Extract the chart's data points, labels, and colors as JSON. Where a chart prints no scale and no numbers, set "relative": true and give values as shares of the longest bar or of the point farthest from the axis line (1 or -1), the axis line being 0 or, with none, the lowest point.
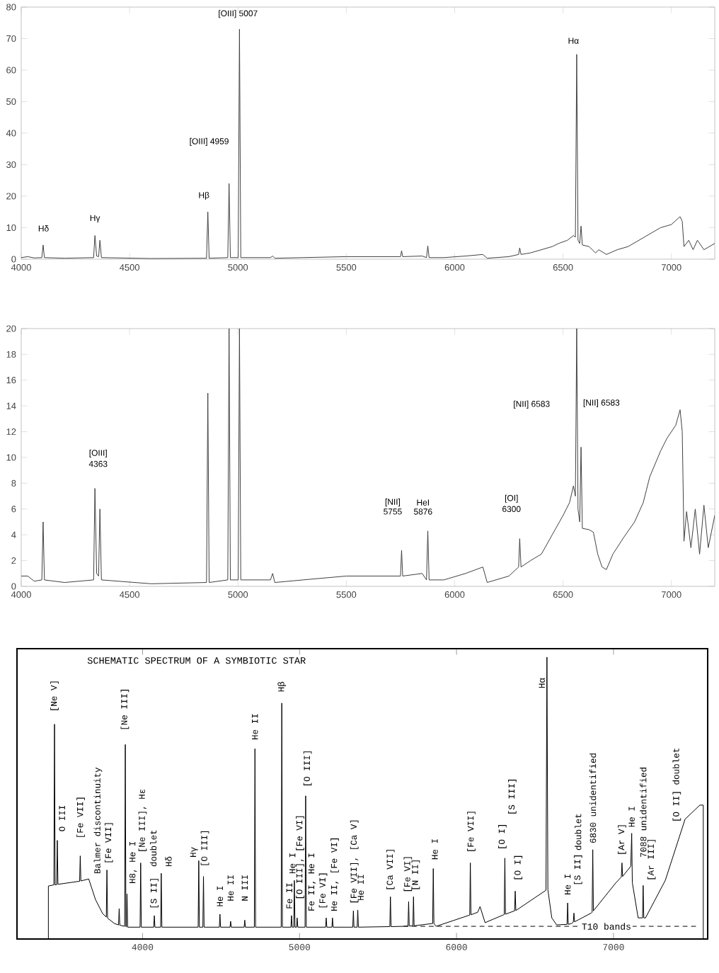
{
  "chart_data": [
    {
      "type": "line",
      "color": "#404040",
      "xlim": [
        4000,
        7200
      ],
      "xticks": [
        4000,
        4500,
        5000,
        5500,
        6000,
        6500,
        7000
      ],
      "ylim": [
        0,
        80
      ],
      "yticks": [
        0,
        10,
        20,
        30,
        40,
        50,
        60,
        70,
        80
      ],
      "x": [
        4000,
        4030,
        4060,
        4095,
        4101,
        4107,
        4200,
        4334,
        4340,
        4348,
        4357,
        4363,
        4370,
        4600,
        4855,
        4861,
        4867,
        4953,
        4959,
        4965,
        5001,
        5007,
        5013,
        5150,
        5160,
        5170,
        5300,
        5500,
        5700,
        5750,
        5755,
        5760,
        5850,
        5870,
        5876,
        5882,
        5950,
        6050,
        6130,
        6150,
        6250,
        6295,
        6300,
        6306,
        6350,
        6400,
        6450,
        6480,
        6520,
        6548,
        6557,
        6563,
        6569,
        6577,
        6583,
        6589,
        6620,
        6650,
        6665,
        6700,
        6750,
        6800,
        6850,
        6900,
        6950,
        7000,
        7040,
        7050,
        7058,
        7080,
        7100,
        7120,
        7150,
        7200
      ],
      "values": [
        0.5,
        0.8,
        0.4,
        0.5,
        4.5,
        0.5,
        0.3,
        0.5,
        7.5,
        1.0,
        0.8,
        6,
        0.5,
        0.2,
        0.3,
        15,
        0.3,
        0.5,
        24,
        0.5,
        0.5,
        73,
        0.5,
        0.5,
        1.0,
        0.3,
        0.5,
        0.8,
        0.8,
        0.8,
        2.7,
        0.8,
        1.0,
        0.5,
        4.2,
        0.5,
        0.5,
        1.0,
        1.5,
        0.3,
        0.8,
        1.5,
        3.6,
        1.5,
        2.0,
        3.0,
        4.0,
        5.0,
        6.0,
        7.5,
        7.0,
        65,
        6.0,
        5.0,
        10.5,
        4.5,
        4.0,
        2.0,
        3.0,
        1.5,
        3.0,
        4.0,
        6.0,
        8.0,
        10.0,
        11.0,
        13.5,
        12.0,
        4.0,
        6.0,
        3.0,
        6.0,
        3.0,
        5.0
      ],
      "annotations": [
        "Hδ",
        "Hγ",
        "Hβ",
        "[OIII] 4959",
        "[OIII] 5007",
        "Hα"
      ]
    },
    {
      "type": "line",
      "color": "#404040",
      "xlim": [
        4000,
        7200
      ],
      "xticks": [
        4000,
        4500,
        5000,
        5500,
        6000,
        6500,
        7000
      ],
      "ylim": [
        0,
        20
      ],
      "yticks": [
        0,
        2,
        4,
        6,
        8,
        10,
        12,
        14,
        16,
        18,
        20
      ],
      "x": [
        4000,
        4030,
        4060,
        4095,
        4101,
        4107,
        4200,
        4334,
        4340,
        4348,
        4357,
        4363,
        4370,
        4600,
        4855,
        4861,
        4867,
        4953,
        4959,
        4965,
        5001,
        5007,
        5013,
        5150,
        5160,
        5170,
        5300,
        5500,
        5700,
        5750,
        5755,
        5760,
        5850,
        5870,
        5876,
        5882,
        5950,
        6050,
        6130,
        6150,
        6250,
        6295,
        6300,
        6306,
        6350,
        6400,
        6450,
        6500,
        6530,
        6548,
        6557,
        6563,
        6569,
        6577,
        6583,
        6589,
        6620,
        6640,
        6660,
        6680,
        6700,
        6730,
        6780,
        6830,
        6870,
        6900,
        6950,
        6980,
        7020,
        7040,
        7050,
        7058,
        7070,
        7090,
        7110,
        7130,
        7150,
        7170,
        7200
      ],
      "values": [
        0.8,
        0.8,
        0.4,
        0.5,
        5.0,
        0.5,
        0.3,
        0.5,
        7.6,
        1.0,
        0.8,
        6.0,
        0.5,
        0.2,
        0.3,
        15,
        0.3,
        0.5,
        20,
        0.5,
        0.5,
        20,
        0.5,
        0.5,
        1.0,
        0.3,
        0.5,
        0.8,
        0.8,
        0.8,
        2.8,
        0.8,
        1.0,
        0.5,
        4.3,
        0.5,
        0.5,
        1.0,
        1.5,
        0.3,
        0.8,
        1.5,
        3.7,
        1.5,
        2.0,
        2.5,
        4.0,
        5.5,
        6.5,
        7.8,
        7.0,
        20,
        6.0,
        5.0,
        10.8,
        4.5,
        4.4,
        4.2,
        2.5,
        1.5,
        1.3,
        2.5,
        3.8,
        5.0,
        6.5,
        8.5,
        10.5,
        11.5,
        12.5,
        13.7,
        12.0,
        3.5,
        5.8,
        3.0,
        6.0,
        2.5,
        6.3,
        3.0,
        5.5
      ],
      "annotations": [
        "[OIII]",
        "4363",
        "[NII]",
        "5755",
        "HeI",
        "5876",
        "[OI]",
        "6300",
        "[NII] 6583",
        "[NII] 6583"
      ]
    },
    {
      "type": "line",
      "relative": true,
      "title": "SCHEMATIC SPECTRUM OF A SYMBIOTIC STAR",
      "xlim": [
        3200,
        7600
      ],
      "xticks": [
        4000,
        5000,
        6000,
        7000
      ],
      "series": [
        {
          "color": "#000000",
          "x": [
            3400,
            3400,
            3435,
            3439,
            3443,
            3453,
            3457,
            3461,
            3599,
            3603,
            3607,
            3657,
            3700,
            3746,
            3769,
            3773,
            3777,
            3821,
            3847,
            3851,
            3855,
            3886,
            3890,
            3894,
            3897,
            3901,
            3905,
            3984,
            3988,
            3992,
            4071,
            4075,
            4079,
            4115,
            4119,
            4123,
            4354,
            4358,
            4362,
            4384,
            4388,
            4392,
            4489,
            4493,
            4497,
            4557,
            4561,
            4565,
            4647,
            4651,
            4655,
            4712,
            4716,
            4720,
            4883,
            4887,
            4891,
            4945,
            4949,
            4953,
            4963,
            4967,
            4971,
            4981,
            4985,
            4989,
            5035,
            5039,
            5043,
            5166,
            5170,
            5174,
            5206,
            5210,
            5214,
            5339,
            5343,
            5347,
            5367,
            5371,
            5375,
            5575,
            5579,
            5583,
            5664,
            5691,
            5695,
            5699,
            5722,
            5726,
            5730,
            5848,
            5852,
            5856,
            5870,
            6084,
            6088,
            6092,
            6135,
            6150,
            6182,
            6300,
            6304,
            6308,
            6312,
            6370,
            6374,
            6378,
            6570,
            6576,
            6582,
            6607,
            6638,
            6704,
            6708,
            6712,
            6733,
            6744,
            6748,
            6752,
            6858,
            6864,
            6868,
            6872,
            7016,
            7050,
            7054,
            7058,
            7110,
            7116,
            7120,
            7157,
            7185,
            7189,
            7193,
            7204,
            7330,
            7456,
            7550,
            7572,
            7572
          ],
          "values": [
            0,
            0.188,
            0.192,
            0.762,
            0.192,
            0.193,
            0.35,
            0.194,
            0.205,
            0.295,
            0.206,
            0.213,
            0.14,
            0.09,
            0.078,
            0.245,
            0.074,
            0.055,
            0.05,
            0.108,
            0.049,
            0.045,
            0.69,
            0.044,
            0.043,
            0.16,
            0.042,
            0.042,
            0.27,
            0.042,
            0.042,
            0.083,
            0.042,
            0.042,
            0.233,
            0.042,
            0.042,
            0.278,
            0.042,
            0.042,
            0.222,
            0.042,
            0.042,
            0.088,
            0.042,
            0.042,
            0.063,
            0.042,
            0.042,
            0.067,
            0.042,
            0.042,
            0.675,
            0.042,
            0.042,
            0.837,
            0.042,
            0.042,
            0.083,
            0.042,
            0.042,
            0.208,
            0.042,
            0.042,
            0.075,
            0.042,
            0.042,
            0.508,
            0.042,
            0.042,
            0.075,
            0.042,
            0.042,
            0.075,
            0.042,
            0.042,
            0.1,
            0.042,
            0.042,
            0.103,
            0.042,
            0.044,
            0.15,
            0.044,
            0.045,
            0.046,
            0.133,
            0.046,
            0.047,
            0.15,
            0.047,
            0.055,
            0.25,
            0.055,
            0.045,
            0.085,
            0.27,
            0.086,
            0.095,
            0.115,
            0.058,
            0.086,
            0.087,
            0.287,
            0.088,
            0.1,
            0.17,
            0.101,
            0.173,
            1.0,
            0.175,
            0.075,
            0.05,
            0.052,
            0.128,
            0.052,
            0.055,
            0.06,
            0.092,
            0.061,
            0.092,
            0.095,
            0.317,
            0.1,
            0.2,
            0.22,
            0.27,
            0.222,
            0.258,
            0.375,
            0.2,
            0.075,
            0.075,
            0.19,
            0.075,
            0.075,
            0.208,
            0.425,
            0.475,
            0.475,
            0
          ]
        },
        {
          "name": "T10 bands",
          "color": "#000000",
          "line_style": "dashed",
          "x": [
            5664,
            7535
          ],
          "values": [
            0.045,
            0.045
          ]
        }
      ],
      "annotations": [
        "[Ne V]",
        "O III",
        "[Fe VII]",
        "Balmer discontinuity",
        "[Fe VII]",
        "[Ne III]",
        "H8, He I",
        "[Ne III], Hε",
        "[S II]",
        "doublet",
        "Hδ",
        "Hγ",
        "[O III]",
        "He I",
        "He II",
        "N III",
        "He II",
        "Hβ",
        "Fe II",
        "He I",
        "[O III], [Fe VI]",
        "[O III]",
        "Fe II, He I",
        "[Fe VI]",
        "He II, [Fe VI]",
        "[Fe VII], [Ca V]",
        "He II",
        "[Ca VII]",
        "[Fe VI]",
        "[N II]",
        "He I",
        "[Fe VII]",
        "[O I]",
        "[S III]",
        "[O I]",
        "Hα",
        "He I",
        "[S II]",
        "doublet",
        "6830 unidentified",
        "[Ar V]",
        "He I",
        "7088 unidentified",
        "[Ar III]",
        "[O II] doublet"
      ]
    }
  ]
}
